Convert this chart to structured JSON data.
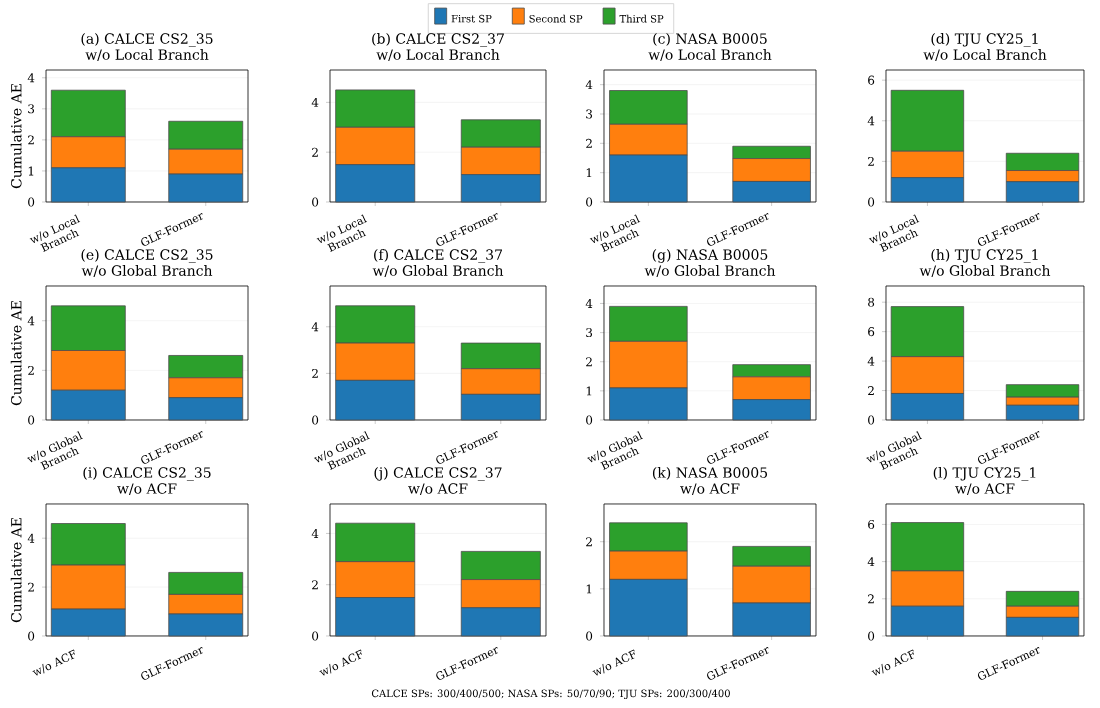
{
  "chart_data": [
    {
      "type": "bar",
      "title": "(a) CALCE CS2_35",
      "subtitle": "w/o Local Branch",
      "ylabel": "Cumulative AE",
      "categories": [
        "w/o Local Branch",
        "GLF-Former"
      ],
      "stacked": true,
      "grid": "y",
      "legend": "top",
      "ylim": [
        0,
        4.25
      ],
      "yticks": [
        0,
        1,
        2,
        3,
        4
      ],
      "annotations": [
        "CALCE SPs: 300/400/500; NASA SPs: 50/70/90; TJU SPs: 200/300/400"
      ],
      "series": [
        {
          "name": "First SP",
          "color": "#1f77b4",
          "values": [
            1.1,
            0.9
          ]
        },
        {
          "name": "Second SP",
          "color": "#ff7f0e",
          "values": [
            1.0,
            0.8
          ]
        },
        {
          "name": "Third SP",
          "color": "#2ca02c",
          "values": [
            1.5,
            0.9
          ]
        }
      ]
    },
    {
      "type": "bar",
      "title": "(b) CALCE CS2_37",
      "subtitle": "w/o Local Branch",
      "categories": [
        "w/o Local Branch",
        "GLF-Former"
      ],
      "stacked": true,
      "grid": "y",
      "ylim": [
        0,
        5.3
      ],
      "yticks": [
        0,
        2,
        4
      ],
      "series": [
        {
          "color": "#1f77b4",
          "values": [
            1.5,
            1.1
          ]
        },
        {
          "color": "#ff7f0e",
          "values": [
            1.5,
            1.1
          ]
        },
        {
          "color": "#2ca02c",
          "values": [
            1.5,
            1.1
          ]
        }
      ]
    },
    {
      "type": "bar",
      "title": "(c) NASA B0005",
      "subtitle": "w/o Local Branch",
      "categories": [
        "w/o Local Branch",
        "GLF-Former"
      ],
      "stacked": true,
      "grid": "y",
      "ylim": [
        0,
        4.5
      ],
      "yticks": [
        0,
        1,
        2,
        3,
        4
      ],
      "series": [
        {
          "color": "#1f77b4",
          "values": [
            1.6,
            0.7
          ]
        },
        {
          "color": "#ff7f0e",
          "values": [
            1.05,
            0.78
          ]
        },
        {
          "color": "#2ca02c",
          "values": [
            1.15,
            0.42
          ]
        }
      ]
    },
    {
      "type": "bar",
      "title": "(d) TJU CY25_1",
      "subtitle": "w/o Local Branch",
      "categories": [
        "w/o Local Branch",
        "GLF-Former"
      ],
      "stacked": true,
      "grid": "y",
      "ylim": [
        0,
        6.5
      ],
      "yticks": [
        0,
        2,
        4,
        6
      ],
      "series": [
        {
          "color": "#1f77b4",
          "values": [
            1.2,
            1.0
          ]
        },
        {
          "color": "#ff7f0e",
          "values": [
            1.3,
            0.55
          ]
        },
        {
          "color": "#2ca02c",
          "values": [
            3.0,
            0.85
          ]
        }
      ]
    },
    {
      "type": "bar",
      "title": "(e) CALCE CS2_35",
      "subtitle": "w/o Global Branch",
      "ylabel": "Cumulative AE",
      "categories": [
        "w/o Global Branch",
        "GLF-Former"
      ],
      "stacked": true,
      "grid": "y",
      "ylim": [
        0,
        5.4
      ],
      "yticks": [
        0,
        2,
        4
      ],
      "series": [
        {
          "color": "#1f77b4",
          "values": [
            1.2,
            0.9
          ]
        },
        {
          "color": "#ff7f0e",
          "values": [
            1.6,
            0.8
          ]
        },
        {
          "color": "#2ca02c",
          "values": [
            1.8,
            0.9
          ]
        }
      ]
    },
    {
      "type": "bar",
      "title": "(f) CALCE CS2_37",
      "subtitle": "w/o Global Branch",
      "categories": [
        "w/o Global Branch",
        "GLF-Former"
      ],
      "stacked": true,
      "grid": "y",
      "ylim": [
        0,
        5.75
      ],
      "yticks": [
        0,
        2,
        4
      ],
      "series": [
        {
          "color": "#1f77b4",
          "values": [
            1.7,
            1.1
          ]
        },
        {
          "color": "#ff7f0e",
          "values": [
            1.6,
            1.1
          ]
        },
        {
          "color": "#2ca02c",
          "values": [
            1.6,
            1.1
          ]
        }
      ]
    },
    {
      "type": "bar",
      "title": "(g) NASA B0005",
      "subtitle": "w/o Global Branch",
      "categories": [
        "w/o Global Branch",
        "GLF-Former"
      ],
      "stacked": true,
      "grid": "y",
      "ylim": [
        0,
        4.6
      ],
      "yticks": [
        0,
        1,
        2,
        3,
        4
      ],
      "series": [
        {
          "color": "#1f77b4",
          "values": [
            1.1,
            0.7
          ]
        },
        {
          "color": "#ff7f0e",
          "values": [
            1.6,
            0.78
          ]
        },
        {
          "color": "#2ca02c",
          "values": [
            1.2,
            0.42
          ]
        }
      ]
    },
    {
      "type": "bar",
      "title": "(h) TJU CY25_1",
      "subtitle": "w/o Global Branch",
      "categories": [
        "w/o Global Branch",
        "GLF-Former"
      ],
      "stacked": true,
      "grid": "y",
      "ylim": [
        0,
        9.1
      ],
      "yticks": [
        0,
        2,
        4,
        6,
        8
      ],
      "series": [
        {
          "color": "#1f77b4",
          "values": [
            1.8,
            1.0
          ]
        },
        {
          "color": "#ff7f0e",
          "values": [
            2.5,
            0.55
          ]
        },
        {
          "color": "#2ca02c",
          "values": [
            3.4,
            0.85
          ]
        }
      ]
    },
    {
      "type": "bar",
      "title": "(i) CALCE CS2_35",
      "subtitle": "w/o ACF",
      "ylabel": "Cumulative AE",
      "categories": [
        "w/o ACF",
        "GLF-Former"
      ],
      "stacked": true,
      "grid": "y",
      "ylim": [
        0,
        5.4
      ],
      "yticks": [
        0,
        2,
        4
      ],
      "series": [
        {
          "color": "#1f77b4",
          "values": [
            1.1,
            0.9
          ]
        },
        {
          "color": "#ff7f0e",
          "values": [
            1.8,
            0.8
          ]
        },
        {
          "color": "#2ca02c",
          "values": [
            1.7,
            0.9
          ]
        }
      ]
    },
    {
      "type": "bar",
      "title": "(j) CALCE CS2_37",
      "subtitle": "w/o ACF",
      "categories": [
        "w/o ACF",
        "GLF-Former"
      ],
      "stacked": true,
      "grid": "y",
      "ylim": [
        0,
        5.15
      ],
      "yticks": [
        0,
        2,
        4
      ],
      "series": [
        {
          "color": "#1f77b4",
          "values": [
            1.5,
            1.1
          ]
        },
        {
          "color": "#ff7f0e",
          "values": [
            1.4,
            1.1
          ]
        },
        {
          "color": "#2ca02c",
          "values": [
            1.5,
            1.1
          ]
        }
      ]
    },
    {
      "type": "bar",
      "title": "(k) NASA B0005",
      "subtitle": "w/o ACF",
      "categories": [
        "w/o ACF",
        "GLF-Former"
      ],
      "stacked": true,
      "grid": "y",
      "ylim": [
        0,
        2.8
      ],
      "yticks": [
        0,
        1,
        2
      ],
      "series": [
        {
          "color": "#1f77b4",
          "values": [
            1.2,
            0.7
          ]
        },
        {
          "color": "#ff7f0e",
          "values": [
            0.6,
            0.78
          ]
        },
        {
          "color": "#2ca02c",
          "values": [
            0.6,
            0.42
          ]
        }
      ]
    },
    {
      "type": "bar",
      "title": "(l) TJU CY25_1",
      "subtitle": "w/o ACF",
      "categories": [
        "w/o ACF",
        "GLF-Former"
      ],
      "stacked": true,
      "grid": "y",
      "ylim": [
        0,
        7.1
      ],
      "yticks": [
        0,
        2,
        4,
        6
      ],
      "series": [
        {
          "color": "#1f77b4",
          "values": [
            1.6,
            1.0
          ]
        },
        {
          "color": "#ff7f0e",
          "values": [
            1.9,
            0.6
          ]
        },
        {
          "color": "#2ca02c",
          "values": [
            2.6,
            0.8
          ]
        }
      ]
    }
  ]
}
